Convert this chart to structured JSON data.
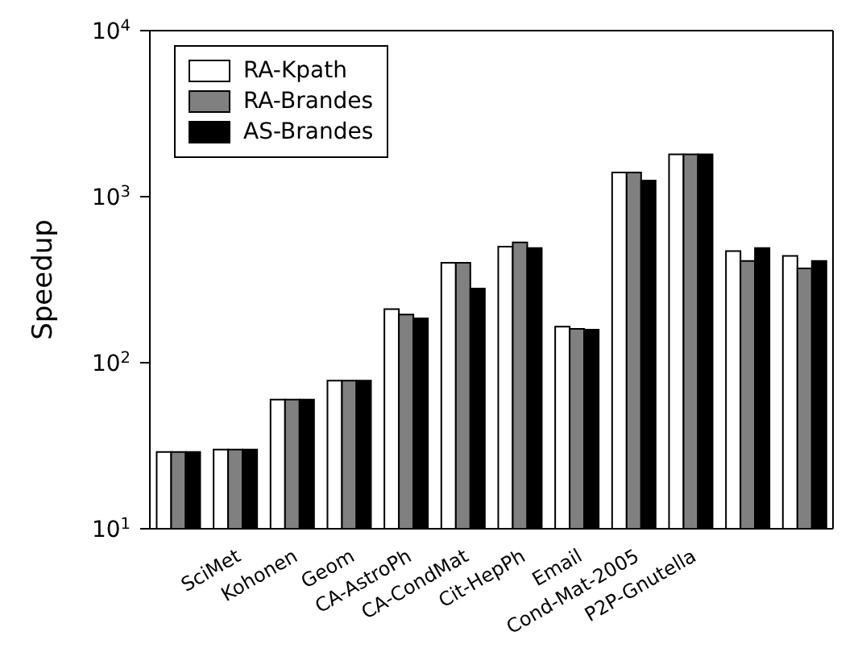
{
  "chart_data": {
    "type": "bar",
    "ylabel": "Speedup",
    "log": true,
    "ylim": [
      10,
      10000
    ],
    "yticks": [
      {
        "value": 10,
        "label": "10$^{1}$"
      },
      {
        "value": 100,
        "label": "10$^{2}$"
      },
      {
        "value": 1000,
        "label": "10$^{3}$"
      },
      {
        "value": 10000,
        "label": "10$^{4}$"
      }
    ],
    "categories": [
      null,
      "SciMet",
      "Kohonen",
      "Geom",
      "CA-AstroPh",
      "CA-CondMat",
      "Cit-HepPh",
      "Email",
      "Cond-Mat-2005",
      "P2P-Gnutella",
      null,
      null
    ],
    "series": [
      {
        "name": "RA-Kpath",
        "color": "#ffffff",
        "values": [
          29,
          30,
          60,
          78,
          210,
          400,
          500,
          165,
          1400,
          1800,
          470,
          440
        ]
      },
      {
        "name": "RA-Brandes",
        "color": "#808080",
        "values": [
          29,
          30,
          60,
          78,
          195,
          400,
          530,
          160,
          1400,
          1800,
          410,
          370
        ]
      },
      {
        "name": "AS-Brandes",
        "color": "#000000",
        "values": [
          29,
          30,
          60,
          78,
          185,
          280,
          490,
          158,
          1250,
          1800,
          490,
          410
        ]
      }
    ],
    "legend": "top left"
  }
}
